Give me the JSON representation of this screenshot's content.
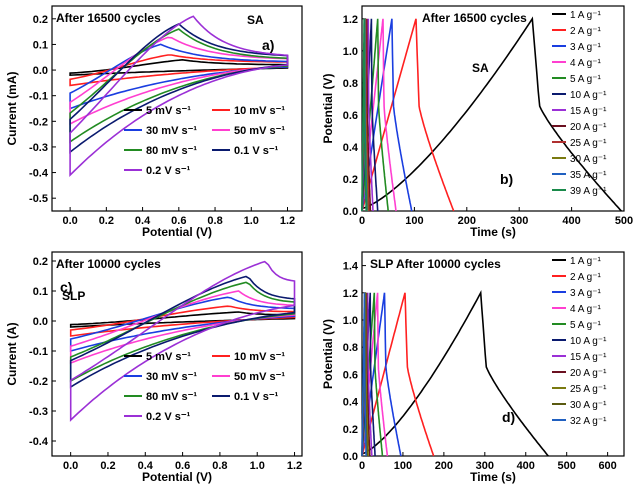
{
  "chart_data": [
    {
      "panel": "a)",
      "type": "line",
      "title": "After 16500 cycles",
      "tag": "SA",
      "xlabel": "Potential (V)",
      "ylabel": "Current (mA)",
      "xlim": [
        -0.1,
        1.28
      ],
      "ylim": [
        -0.55,
        0.25
      ],
      "xticks": [
        "0.0",
        "0.2",
        "0.4",
        "0.6",
        "0.8",
        "1.0",
        "1.2"
      ],
      "yticks": [
        "0.2",
        "0.1",
        "0.0",
        "-0.1",
        "-0.2",
        "-0.3",
        "-0.4",
        "-0.5"
      ],
      "legend": [
        "5 mV s⁻¹",
        "10 mV s⁻¹",
        "30 mV s⁻¹",
        "50 mV s⁻¹",
        "80 mV s⁻¹",
        "0.1 V s⁻¹",
        "0.2 V s⁻¹"
      ],
      "series": [
        {
          "name": "5 mV s⁻¹",
          "color": "#000000",
          "peak": [
            0.62,
            0.04
          ],
          "min": -0.02,
          "x_end": 1.2,
          "i_end": 0.02
        },
        {
          "name": "10 mV s⁻¹",
          "color": "#ff2020",
          "peak": [
            0.55,
            0.06
          ],
          "min": -0.06,
          "x_end": 1.2,
          "i_end": 0.03
        },
        {
          "name": "30 mV s⁻¹",
          "color": "#1a3ee0",
          "peak": [
            0.5,
            0.1
          ],
          "min": -0.15,
          "x_end": 1.2,
          "i_end": 0.03
        },
        {
          "name": "50 mV s⁻¹",
          "color": "#ff3fd0",
          "peak": [
            0.55,
            0.13
          ],
          "min": -0.21,
          "x_end": 1.2,
          "i_end": 0.04
        },
        {
          "name": "80 mV s⁻¹",
          "color": "#228b22",
          "peak": [
            0.6,
            0.16
          ],
          "min": -0.28,
          "x_end": 1.2,
          "i_end": 0.04
        },
        {
          "name": "0.1 V s⁻¹",
          "color": "#0a1a6e",
          "peak": [
            0.6,
            0.18
          ],
          "min": -0.32,
          "x_end": 1.2,
          "i_end": 0.05
        },
        {
          "name": "0.2 V s⁻¹",
          "color": "#9b30d6",
          "peak": [
            0.68,
            0.21
          ],
          "min": -0.41,
          "x_end": 1.2,
          "i_end": 0.05
        }
      ]
    },
    {
      "panel": "b)",
      "type": "line",
      "title": "After 16500 cycles",
      "tag": "SA",
      "xlabel": "Time (s)",
      "ylabel": "Potential (V)",
      "xlim": [
        0,
        500
      ],
      "ylim": [
        0,
        1.28
      ],
      "xticks": [
        "0",
        "100",
        "200",
        "300",
        "400",
        "500"
      ],
      "yticks": [
        "0.0",
        "0.2",
        "0.4",
        "0.6",
        "0.8",
        "1.0",
        "1.2"
      ],
      "legend": [
        "1 A g⁻¹",
        "2 A g⁻¹",
        "3 A g⁻¹",
        "4 A g⁻¹",
        "5 A g⁻¹",
        "10 A g⁻¹",
        "15 A g⁻¹",
        "20 A g⁻¹",
        "25 A g⁻¹",
        "30 A g⁻¹",
        "35 A g⁻¹",
        "39 A g⁻¹"
      ],
      "series": [
        {
          "name": "1 A g⁻¹",
          "color": "#000000",
          "charge_end": 325,
          "discharge_end": 495
        },
        {
          "name": "2 A g⁻¹",
          "color": "#ff2020",
          "charge_end": 103,
          "discharge_end": 175
        },
        {
          "name": "3 A g⁻¹",
          "color": "#1a3ee0",
          "charge_end": 57,
          "discharge_end": 95
        },
        {
          "name": "4 A g⁻¹",
          "color": "#ff3fd0",
          "charge_end": 40,
          "discharge_end": 65
        },
        {
          "name": "5 A g⁻¹",
          "color": "#228b22",
          "charge_end": 30,
          "discharge_end": 50
        },
        {
          "name": "10 A g⁻¹",
          "color": "#0a1a6e",
          "charge_end": 18,
          "discharge_end": 30
        },
        {
          "name": "15 A g⁻¹",
          "color": "#9b30d6",
          "charge_end": 12,
          "discharge_end": 21
        },
        {
          "name": "20 A g⁻¹",
          "color": "#6b1020",
          "charge_end": 9,
          "discharge_end": 16
        },
        {
          "name": "25 A g⁻¹",
          "color": "#b03030",
          "charge_end": 7,
          "discharge_end": 13
        },
        {
          "name": "30 A g⁻¹",
          "color": "#7a7a10",
          "charge_end": 6,
          "discharge_end": 11
        },
        {
          "name": "35 A g⁻¹",
          "color": "#2060c0",
          "charge_end": 5,
          "discharge_end": 9
        },
        {
          "name": "39 A g⁻¹",
          "color": "#1a8a4a",
          "charge_end": 4,
          "discharge_end": 8
        }
      ]
    },
    {
      "panel": "c)",
      "type": "line",
      "title": "After 10000 cycles",
      "tag": "SLP",
      "xlabel": "Potential (V)",
      "ylabel": "Current (A)",
      "xlim": [
        -0.1,
        1.24
      ],
      "ylim": [
        -0.45,
        0.23
      ],
      "xticks": [
        "0.0",
        "0.2",
        "0.4",
        "0.6",
        "0.8",
        "1.0",
        "1.2"
      ],
      "yticks": [
        "0.2",
        "0.1",
        "0.0",
        "-0.1",
        "-0.2",
        "-0.3",
        "-0.4"
      ],
      "legend": [
        "5 mV s⁻¹",
        "10 mV s⁻¹",
        "30 mV s⁻¹",
        "50 mV s⁻¹",
        "80 mV s⁻¹",
        "0.1 V s⁻¹",
        "0.2 V s⁻¹"
      ],
      "series": [
        {
          "name": "5 mV s⁻¹",
          "color": "#000000",
          "peak": [
            0.9,
            0.03
          ],
          "min": -0.02,
          "x_end": 1.2,
          "i_end": 0.02
        },
        {
          "name": "10 mV s⁻¹",
          "color": "#ff2020",
          "peak": [
            0.85,
            0.05
          ],
          "min": -0.05,
          "x_end": 1.2,
          "i_end": 0.03
        },
        {
          "name": "30 mV s⁻¹",
          "color": "#1a3ee0",
          "peak": [
            0.85,
            0.08
          ],
          "min": -0.1,
          "x_end": 1.2,
          "i_end": 0.04
        },
        {
          "name": "50 mV s⁻¹",
          "color": "#ff3fd0",
          "peak": [
            0.9,
            0.1
          ],
          "min": -0.14,
          "x_end": 1.2,
          "i_end": 0.05
        },
        {
          "name": "80 mV s⁻¹",
          "color": "#228b22",
          "peak": [
            0.95,
            0.13
          ],
          "min": -0.2,
          "x_end": 1.2,
          "i_end": 0.06
        },
        {
          "name": "0.1 V s⁻¹",
          "color": "#0a1a6e",
          "peak": [
            0.95,
            0.15
          ],
          "min": -0.22,
          "x_end": 1.2,
          "i_end": 0.07
        },
        {
          "name": "0.2 V s⁻¹",
          "color": "#9b30d6",
          "peak": [
            1.05,
            0.2
          ],
          "min": -0.33,
          "x_end": 1.2,
          "i_end": 0.13
        }
      ]
    },
    {
      "panel": "d)",
      "type": "line",
      "title": "SLP After 10000 cycles",
      "xlabel": "Time (s)",
      "ylabel": "Potential (V)",
      "xlim": [
        0,
        640
      ],
      "ylim": [
        0,
        1.5
      ],
      "xticks": [
        "0",
        "100",
        "200",
        "300",
        "400",
        "500",
        "600"
      ],
      "yticks": [
        "0.0",
        "0.2",
        "0.4",
        "0.6",
        "0.8",
        "1.0",
        "1.2",
        "1.4"
      ],
      "legend": [
        "1 A g⁻¹",
        "2 A g⁻¹",
        "3 A g⁻¹",
        "4 A g⁻¹",
        "5 A g⁻¹",
        "10 A g⁻¹",
        "15 A g⁻¹",
        "20 A g⁻¹",
        "25 A g⁻¹",
        "30 A g⁻¹",
        "32 A g⁻¹"
      ],
      "series": [
        {
          "name": "1 A g⁻¹",
          "color": "#000000",
          "charge_end": 290,
          "discharge_end": 455
        },
        {
          "name": "2 A g⁻¹",
          "color": "#ff2020",
          "charge_end": 105,
          "discharge_end": 175
        },
        {
          "name": "3 A g⁻¹",
          "color": "#1a3ee0",
          "charge_end": 55,
          "discharge_end": 95
        },
        {
          "name": "4 A g⁻¹",
          "color": "#ff3fd0",
          "charge_end": 38,
          "discharge_end": 62
        },
        {
          "name": "5 A g⁻¹",
          "color": "#228b22",
          "charge_end": 30,
          "discharge_end": 50
        },
        {
          "name": "10 A g⁻¹",
          "color": "#0a1a6e",
          "charge_end": 20,
          "discharge_end": 32
        },
        {
          "name": "15 A g⁻¹",
          "color": "#9b30d6",
          "charge_end": 14,
          "discharge_end": 24
        },
        {
          "name": "20 A g⁻¹",
          "color": "#6b1020",
          "charge_end": 11,
          "discharge_end": 19
        },
        {
          "name": "25 A g⁻¹",
          "color": "#7a7a10",
          "charge_end": 9,
          "discharge_end": 15
        },
        {
          "name": "30 A g⁻¹",
          "color": "#5a5a10",
          "charge_end": 7,
          "discharge_end": 12
        },
        {
          "name": "32 A g⁻¹",
          "color": "#2060c0",
          "charge_end": 6,
          "discharge_end": 10
        }
      ]
    }
  ]
}
